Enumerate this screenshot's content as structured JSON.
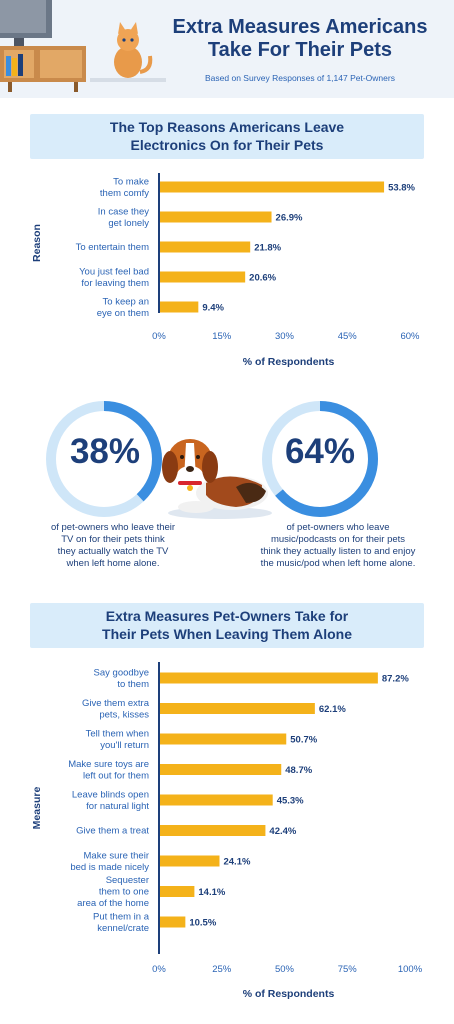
{
  "header": {
    "title_line1": "Extra Measures Americans",
    "title_line2": "Take For Their Pets",
    "subtitle": "Based on Survey Responses of 1,147 Pet-Owners"
  },
  "colors": {
    "navy": "#1d3f7a",
    "bar": "#f4b21a",
    "ring_light": "#cfe6f8",
    "ring_dark": "#3a8ee0",
    "band": "#d9ecfa",
    "axis_label": "#2b64b5"
  },
  "stats": [
    {
      "value": "38%",
      "fraction": 0.38,
      "caption": [
        "of pet-owners who leave their",
        "TV on for their pets think",
        "they actually watch the TV",
        "when left home alone."
      ]
    },
    {
      "value": "64%",
      "fraction": 0.64,
      "caption": [
        "of pet-owners who leave",
        "music/podcasts on for their pets",
        "think they actually listen to and enjoy",
        "the music/pod when left home alone."
      ]
    }
  ],
  "chart_data": [
    {
      "type": "bar",
      "orientation": "horizontal",
      "title": "The Top Reasons Americans Leave Electronics On for Their Pets",
      "title_lines": [
        "The Top Reasons Americans Leave",
        "Electronics On for Their Pets"
      ],
      "ylabel": "Reason",
      "xlabel": "% of Respondents",
      "xlim": [
        0,
        60
      ],
      "xticks": [
        "0%",
        "15%",
        "30%",
        "45%",
        "60%"
      ],
      "categories": [
        [
          "To make",
          "them comfy"
        ],
        [
          "In case they",
          "get lonely"
        ],
        [
          "To entertain them"
        ],
        [
          "You just feel bad",
          "for leaving them"
        ],
        [
          "To keep an",
          "eye on them"
        ]
      ],
      "values": [
        53.8,
        26.9,
        21.8,
        20.6,
        9.4
      ],
      "labels": [
        "53.8%",
        "26.9%",
        "21.8%",
        "20.6%",
        "9.4%"
      ]
    },
    {
      "type": "bar",
      "orientation": "horizontal",
      "title": "Extra Measures Pet-Owners Take for Their Pets When Leaving Them Alone",
      "title_lines": [
        "Extra Measures Pet-Owners Take for",
        "Their Pets When Leaving Them Alone"
      ],
      "ylabel": "Measure",
      "xlabel": "% of Respondents",
      "xlim": [
        0,
        100
      ],
      "xticks": [
        "0%",
        "25%",
        "50%",
        "75%",
        "100%"
      ],
      "categories": [
        [
          "Say goodbye",
          "to them"
        ],
        [
          "Give them extra",
          "pets, kisses"
        ],
        [
          "Tell them when",
          "you'll return"
        ],
        [
          "Make sure toys are",
          "left out for them"
        ],
        [
          "Leave blinds open",
          "for natural light"
        ],
        [
          "Give them a treat"
        ],
        [
          "Make sure their",
          "bed is made nicely"
        ],
        [
          "Sequester",
          "them to one",
          "area of the home"
        ],
        [
          "Put them in a",
          "kennel/crate"
        ]
      ],
      "values": [
        87.2,
        62.1,
        50.7,
        48.7,
        45.3,
        42.4,
        24.1,
        14.1,
        10.5
      ],
      "labels": [
        "87.2%",
        "62.1%",
        "50.7%",
        "48.7%",
        "45.3%",
        "42.4%",
        "24.1%",
        "14.1%",
        "10.5%"
      ]
    }
  ]
}
